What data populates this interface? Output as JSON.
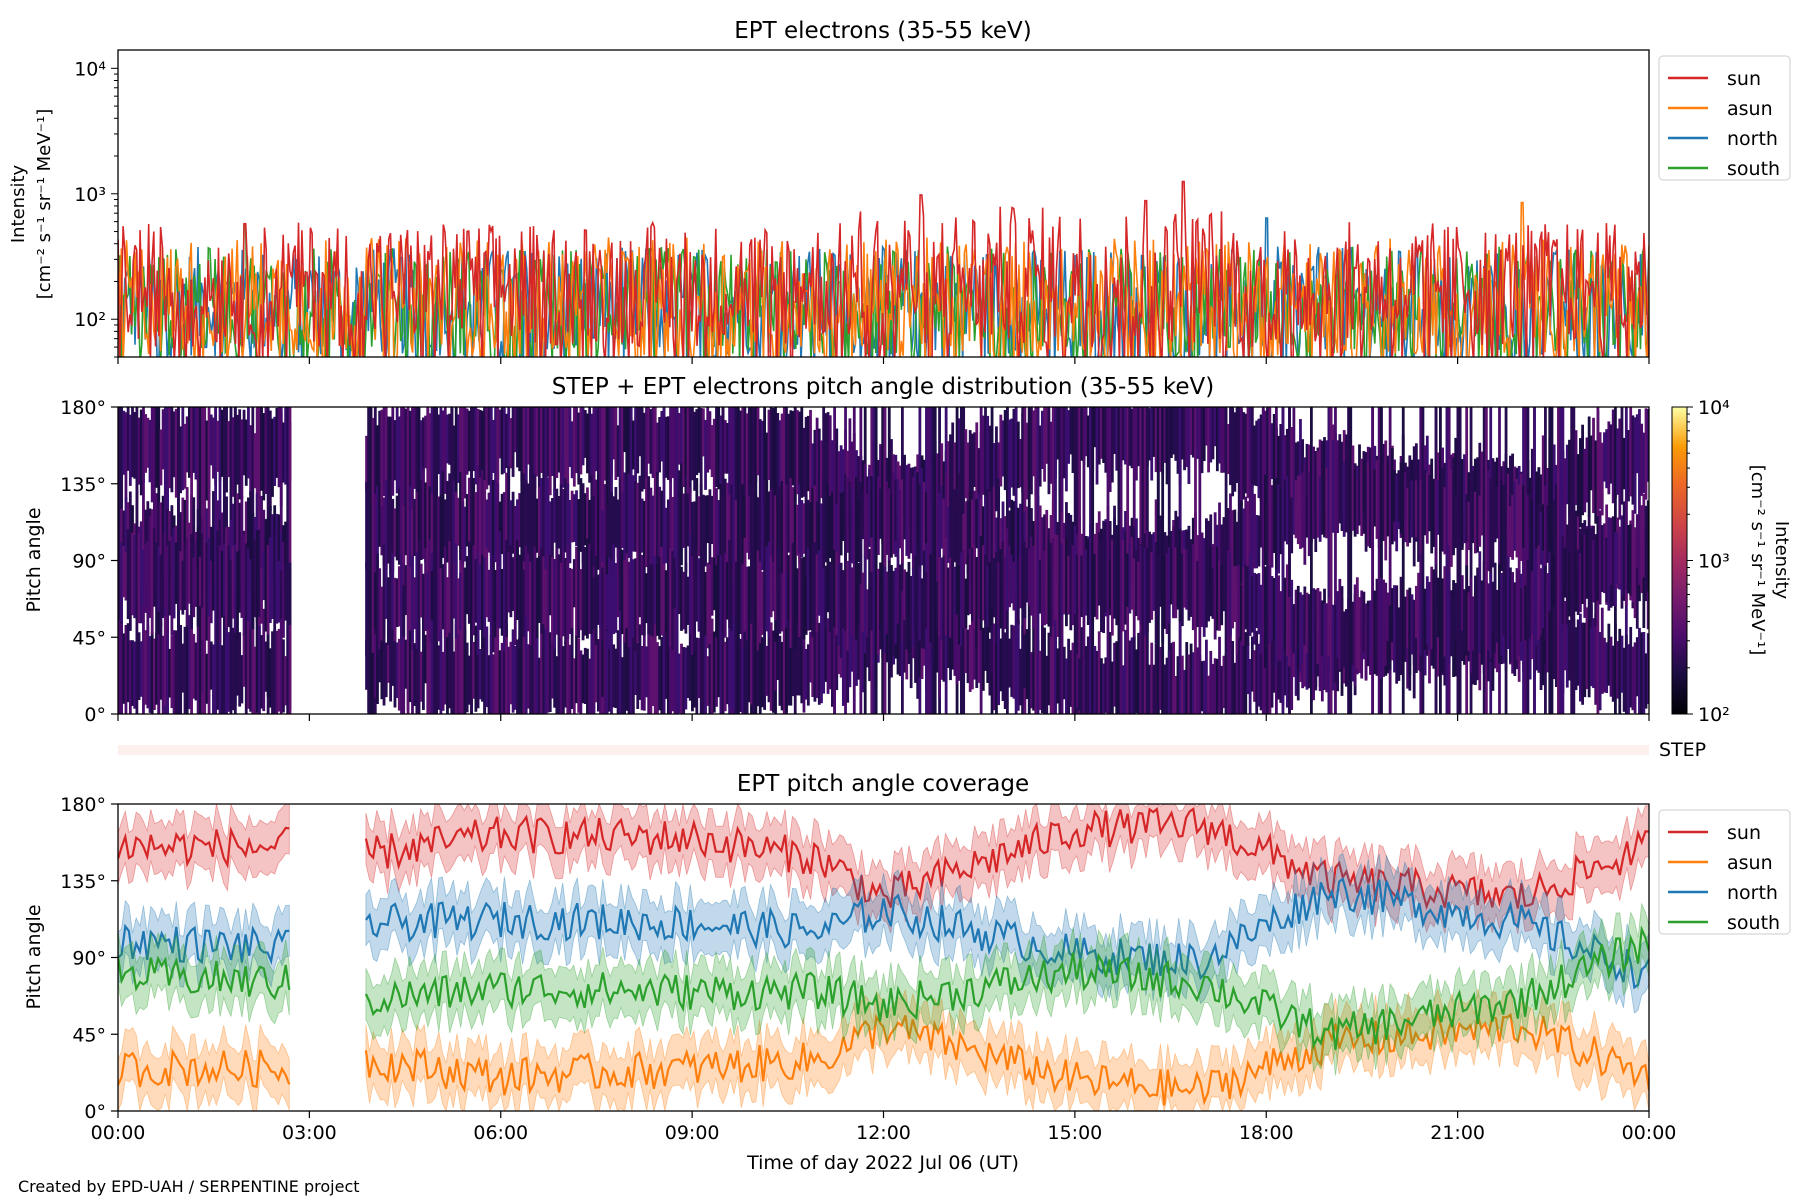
{
  "credit": "Created by EPD-UAH / SERPENTINE project",
  "xlabel": "Time of day 2022 Jul 06 (UT)",
  "time_ticks": [
    "00:00",
    "03:00",
    "06:00",
    "09:00",
    "12:00",
    "15:00",
    "18:00",
    "21:00",
    "00:00"
  ],
  "colors": {
    "sun": "#d62728",
    "asun": "#ff7f0e",
    "north": "#1f77b4",
    "south": "#2ca02c"
  },
  "chart_data": [
    {
      "type": "line",
      "title": "EPT electrons (35-55 keV)",
      "ylabel_line1": "Intensity",
      "ylabel_line2": "[cm⁻² s⁻¹ sr⁻¹ MeV⁻¹]",
      "yscale": "log",
      "ylim": [
        50,
        14000
      ],
      "yticks": [
        "10²",
        "10³",
        "10⁴"
      ],
      "xlim_hours": [
        0,
        24
      ],
      "legend": "top-right outside",
      "series": [
        {
          "name": "sun",
          "color": "#d62728",
          "typical_range": [
            60,
            600
          ],
          "peaks": [
            [
              12.6,
              980
            ],
            [
              16.7,
              1250
            ],
            [
              16.1,
              880
            ]
          ]
        },
        {
          "name": "asun",
          "color": "#ff7f0e",
          "typical_range": [
            50,
            450
          ],
          "peaks": [
            [
              22.0,
              850
            ]
          ]
        },
        {
          "name": "north",
          "color": "#1f77b4",
          "typical_range": [
            50,
            380
          ],
          "peaks": [
            [
              18.0,
              640
            ]
          ]
        },
        {
          "name": "south",
          "color": "#2ca02c",
          "typical_range": [
            50,
            380
          ],
          "peaks": [
            [
              2.0,
              560
            ]
          ]
        }
      ]
    },
    {
      "type": "heatmap",
      "title": "STEP + EPT electrons pitch angle distribution (35-55 keV)",
      "ylabel": "Pitch angle",
      "yticks": [
        "0°",
        "45°",
        "90°",
        "135°",
        "180°"
      ],
      "ylim": [
        0,
        180
      ],
      "colorbar": {
        "label_line1": "Intensity",
        "label_line2": "[cm⁻² s⁻¹ sr⁻¹ MeV⁻¹]",
        "scale": "log",
        "range": [
          100,
          10000
        ],
        "ticks": [
          "10²",
          "10³",
          "10⁴"
        ],
        "colormap": "inferno"
      },
      "data_gap_hours": [
        2.7,
        3.85
      ],
      "step_label": "STEP"
    },
    {
      "type": "line",
      "title": "EPT pitch angle coverage",
      "ylabel": "Pitch angle",
      "yticks": [
        "0°",
        "45°",
        "90°",
        "135°",
        "180°"
      ],
      "ylim": [
        0,
        180
      ],
      "legend": "top-right outside",
      "data_gap_hours": [
        2.7,
        3.85
      ],
      "series": [
        {
          "name": "sun",
          "color": "#d62728",
          "mean_deg": [
            [
              0,
              155
            ],
            [
              2.7,
              155
            ],
            [
              3.85,
              150
            ],
            [
              6,
              162
            ],
            [
              9,
              160
            ],
            [
              11,
              148
            ],
            [
              12,
              125
            ],
            [
              15,
              165
            ],
            [
              17,
              168
            ],
            [
              19,
              135
            ],
            [
              22,
              125
            ],
            [
              24,
              155
            ]
          ]
        },
        {
          "name": "asun",
          "color": "#ff7f0e",
          "mean_deg": [
            [
              0,
              25
            ],
            [
              2.7,
              25
            ],
            [
              3.85,
              30
            ],
            [
              6,
              20
            ],
            [
              9,
              25
            ],
            [
              11,
              30
            ],
            [
              12,
              50
            ],
            [
              15,
              18
            ],
            [
              17,
              12
            ],
            [
              19,
              40
            ],
            [
              22,
              50
            ],
            [
              24,
              20
            ]
          ]
        },
        {
          "name": "north",
          "color": "#1f77b4",
          "mean_deg": [
            [
              0,
              100
            ],
            [
              2.7,
              95
            ],
            [
              3.85,
              110
            ],
            [
              6,
              112
            ],
            [
              9,
              110
            ],
            [
              11,
              105
            ],
            [
              12,
              118
            ],
            [
              15,
              92
            ],
            [
              17,
              88
            ],
            [
              19,
              130
            ],
            [
              22,
              110
            ],
            [
              24,
              80
            ]
          ]
        },
        {
          "name": "south",
          "color": "#2ca02c",
          "mean_deg": [
            [
              0,
              80
            ],
            [
              2.7,
              75
            ],
            [
              3.85,
              65
            ],
            [
              6,
              72
            ],
            [
              9,
              70
            ],
            [
              11,
              70
            ],
            [
              12,
              62
            ],
            [
              15,
              82
            ],
            [
              17,
              75
            ],
            [
              19,
              45
            ],
            [
              22,
              65
            ],
            [
              24,
              100
            ]
          ]
        }
      ]
    }
  ]
}
